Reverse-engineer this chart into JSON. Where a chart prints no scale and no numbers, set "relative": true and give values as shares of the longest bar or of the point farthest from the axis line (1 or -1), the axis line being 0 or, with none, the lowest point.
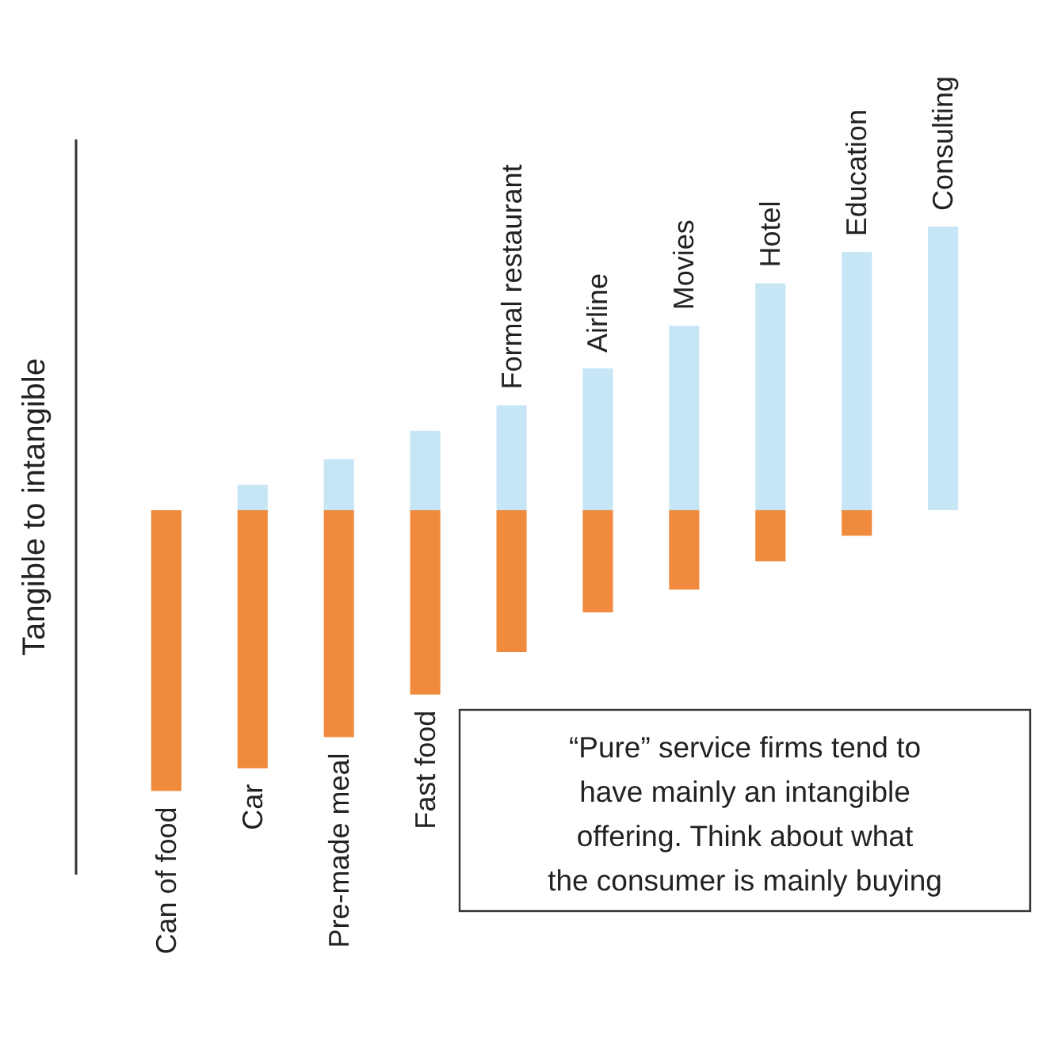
{
  "chart_data": {
    "type": "bar",
    "relative": true,
    "stacked": true,
    "ylabel": "Tangible to intangible",
    "categories": [
      "Can of food",
      "Car",
      "Pre-made meal",
      "Fast food",
      "Formal restaurant",
      "Airline",
      "Movies",
      "Hotel",
      "Education",
      "Consulting"
    ],
    "series": [
      {
        "color": "#f08a3c",
        "values": [
          -0.99,
          -0.91,
          -0.8,
          -0.65,
          -0.5,
          -0.36,
          -0.28,
          -0.18,
          -0.09,
          null
        ]
      },
      {
        "color": "#c6e6f5",
        "values": [
          null,
          0.09,
          0.18,
          0.28,
          0.37,
          0.5,
          0.65,
          0.8,
          0.91,
          1
        ]
      }
    ],
    "annotations": [
      "“Pure” service firms tend to\nhave mainly an intangible\noffering. Think about what\nthe consumer is mainly buying"
    ]
  }
}
